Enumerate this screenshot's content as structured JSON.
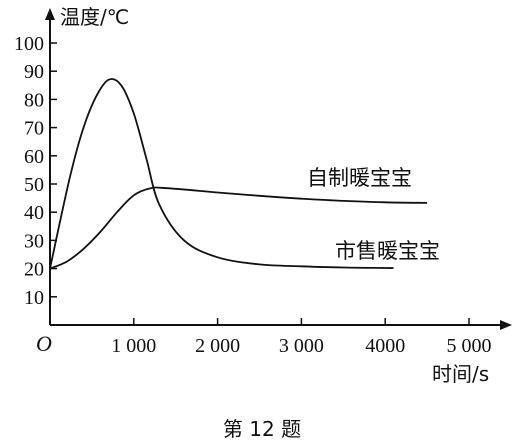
{
  "chart_data": {
    "type": "line",
    "ylabel": "温度/℃",
    "xlabel": "时间/s",
    "origin_label": "O",
    "caption": "第 12 题",
    "xlim": [
      0,
      5500
    ],
    "ylim": [
      0,
      105
    ],
    "x_ticks": [
      1000,
      2000,
      3000,
      4000,
      5000
    ],
    "x_tick_labels": [
      "1 000",
      "2 000",
      "3 000",
      "4000",
      "5 000"
    ],
    "y_ticks": [
      10,
      20,
      30,
      40,
      50,
      60,
      70,
      80,
      90,
      100
    ],
    "y_tick_labels": [
      "10",
      "20",
      "30",
      "40",
      "50",
      "60",
      "70",
      "80",
      "90",
      "100"
    ],
    "grid": false,
    "series": [
      {
        "name": "市售暖宝宝",
        "x": [
          0,
          100,
          250,
          400,
          550,
          700,
          850,
          1000,
          1150,
          1300,
          1600,
          2000,
          2500,
          3000,
          3500,
          4000,
          4100
        ],
        "y": [
          20,
          34,
          54,
          70,
          81,
          87,
          85,
          75,
          59,
          43,
          30,
          24,
          21.5,
          20.8,
          20.4,
          20.2,
          20.2
        ]
      },
      {
        "name": "自制暖宝宝",
        "x": [
          0,
          200,
          400,
          600,
          800,
          1000,
          1200,
          1400,
          2000,
          2500,
          3000,
          3500,
          4000,
          4500
        ],
        "y": [
          20,
          22.5,
          27,
          33,
          40,
          46,
          48.5,
          48.5,
          47,
          45.8,
          44.8,
          44,
          43.5,
          43.3
        ]
      }
    ]
  }
}
